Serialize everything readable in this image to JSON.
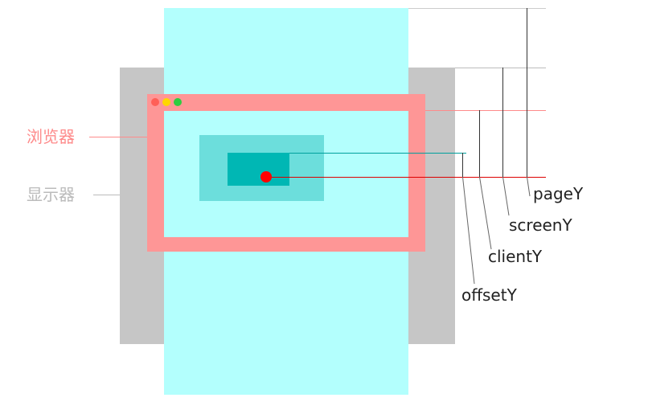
{
  "labels": {
    "browser": "浏览器",
    "display": "显示器",
    "pageY": "pageY",
    "screenY": "screenY",
    "clientY": "clientY",
    "offsetY": "offsetY"
  },
  "colors": {
    "page": "#b3fffd",
    "display": "#c6c6c6",
    "browser_frame": "#fe9696",
    "viewport": "#b3fffd",
    "offset_parent": "#6cdedc",
    "target": "#00b7b4",
    "mouse_point": "#ff0000",
    "dot_red": "#ff5f57",
    "dot_yellow": "#ffd700",
    "dot_green": "#2ecc40",
    "browser_label": "#fe8b8b",
    "display_label": "#bbbbbb",
    "text": "#222222"
  }
}
